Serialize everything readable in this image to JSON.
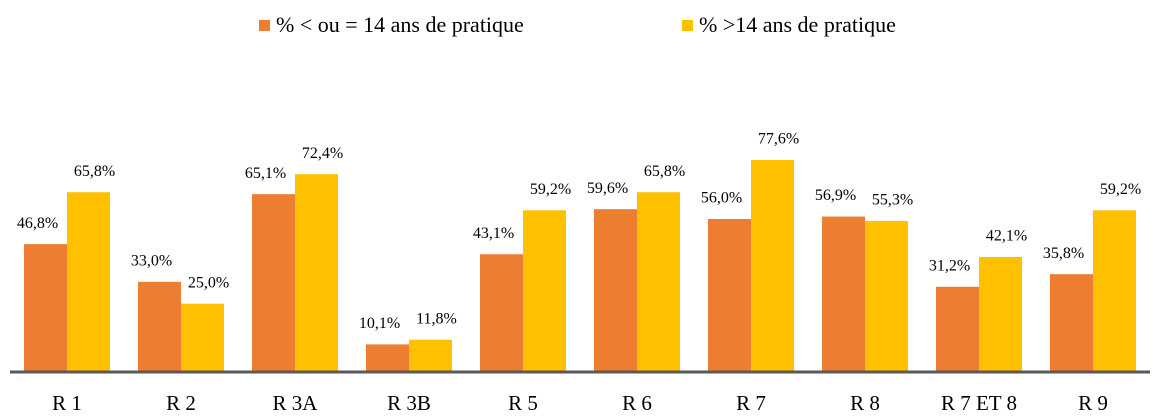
{
  "chart_data": {
    "type": "bar",
    "categories": [
      "R 1",
      "R 2",
      "R 3A",
      "R 3B",
      "R 5",
      "R 6",
      "R 7",
      "R 8",
      "R 7 ET 8",
      "R 9"
    ],
    "series": [
      {
        "name": "% < ou = 14 ans de pratique",
        "color": "#ED7D31",
        "values": [
          46.8,
          33.0,
          65.1,
          10.1,
          43.1,
          59.6,
          56.0,
          56.9,
          31.2,
          35.8
        ],
        "value_labels": [
          "46,8%",
          "33,0%",
          "65,1%",
          "10,1%",
          "43,1%",
          "59,6%",
          "56,0%",
          "56,9%",
          "31,2%",
          "35,8%"
        ]
      },
      {
        "name": "% >14 ans de pratique",
        "color": "#FFC000",
        "values": [
          65.8,
          25.0,
          72.4,
          11.8,
          59.2,
          65.8,
          77.6,
          55.3,
          42.1,
          59.2
        ],
        "value_labels": [
          "65,8%",
          "25,0%",
          "72,4%",
          "11,8%",
          "59,2%",
          "65,8%",
          "77,6%",
          "55,3%",
          "42,1%",
          "59,2%"
        ]
      }
    ]
  }
}
